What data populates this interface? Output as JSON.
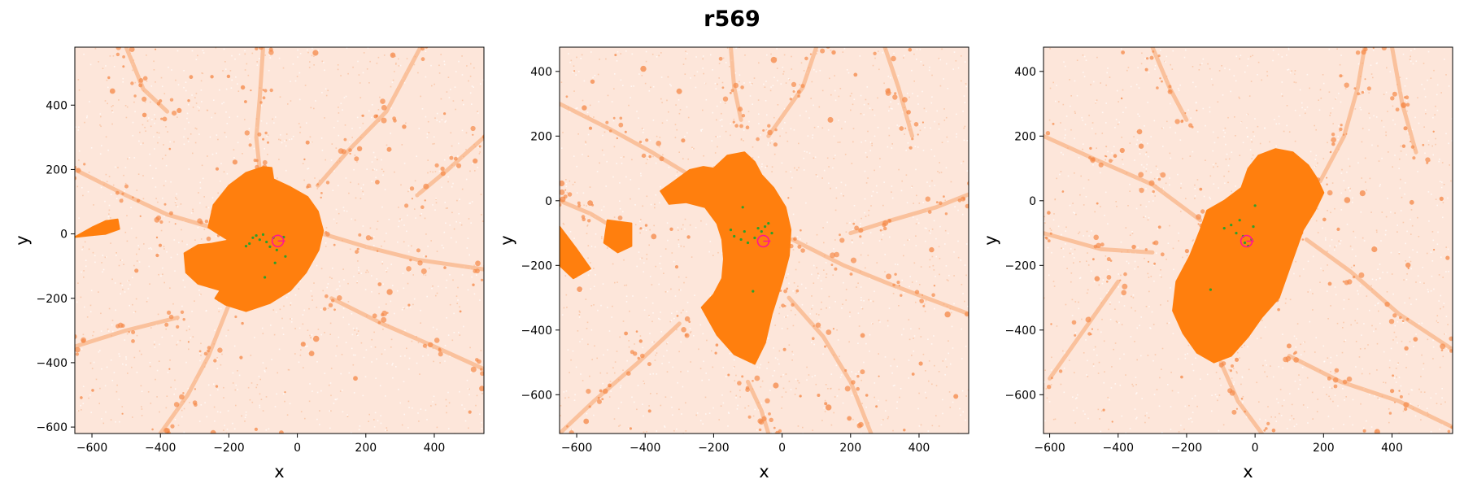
{
  "figure": {
    "title": "r569"
  },
  "colors": {
    "particles": "#ff7f0e",
    "halo": "#ff7f0e",
    "subhalo": "#2ca02c",
    "center": "#ff1493"
  },
  "chart_data": [
    {
      "type": "scatter",
      "xlabel": "x",
      "ylabel": "y",
      "xlim": [
        -650,
        545
      ],
      "ylim": [
        -620,
        580
      ],
      "xticks": [
        -600,
        -400,
        -200,
        0,
        200,
        400
      ],
      "yticks": [
        -600,
        -400,
        -200,
        0,
        200,
        400
      ],
      "center": [
        -57,
        -22
      ],
      "halo": [
        [
          -70,
          170
        ],
        [
          -20,
          145
        ],
        [
          30,
          115
        ],
        [
          60,
          70
        ],
        [
          75,
          10
        ],
        [
          62,
          -50
        ],
        [
          25,
          -120
        ],
        [
          -20,
          -175
        ],
        [
          -80,
          -215
        ],
        [
          -150,
          -240
        ],
        [
          -210,
          -220
        ],
        [
          -240,
          -200
        ],
        [
          -225,
          -175
        ],
        [
          -290,
          -155
        ],
        [
          -325,
          -120
        ],
        [
          -330,
          -60
        ],
        [
          -290,
          -35
        ],
        [
          -250,
          -30
        ],
        [
          -200,
          -20
        ],
        [
          -260,
          20
        ],
        [
          -245,
          90
        ],
        [
          -200,
          150
        ],
        [
          -150,
          190
        ],
        [
          -100,
          208
        ],
        [
          -75,
          205
        ]
      ],
      "halo_tail": [
        [
          -650,
          -10
        ],
        [
          -600,
          20
        ],
        [
          -560,
          40
        ],
        [
          -525,
          45
        ],
        [
          -520,
          15
        ],
        [
          -560,
          0
        ],
        [
          -610,
          -5
        ]
      ],
      "subhalos": [
        [
          -150,
          -38
        ],
        [
          -140,
          -30
        ],
        [
          -130,
          -12
        ],
        [
          -120,
          -5
        ],
        [
          -110,
          -18
        ],
        [
          -100,
          -2
        ],
        [
          -90,
          -25
        ],
        [
          -80,
          -40
        ],
        [
          -70,
          -12
        ],
        [
          -60,
          -50
        ],
        [
          -40,
          -10
        ],
        [
          -35,
          -70
        ],
        [
          -65,
          -90
        ],
        [
          -95,
          -135
        ]
      ],
      "filaments": [
        [
          [
            -650,
            200
          ],
          [
            -500,
            120
          ],
          [
            -380,
            60
          ],
          [
            -250,
            20
          ]
        ],
        [
          [
            -100,
            580
          ],
          [
            -110,
            420
          ],
          [
            -120,
            300
          ],
          [
            -110,
            200
          ]
        ],
        [
          [
            75,
            0
          ],
          [
            200,
            -40
          ],
          [
            350,
            -80
          ],
          [
            545,
            -110
          ]
        ],
        [
          [
            60,
            150
          ],
          [
            150,
            260
          ],
          [
            260,
            380
          ],
          [
            360,
            580
          ]
        ],
        [
          [
            -200,
            -220
          ],
          [
            -260,
            -380
          ],
          [
            -320,
            -500
          ],
          [
            -400,
            -620
          ]
        ],
        [
          [
            -650,
            -350
          ],
          [
            -500,
            -300
          ],
          [
            -350,
            -260
          ]
        ],
        [
          [
            100,
            -200
          ],
          [
            250,
            -280
          ],
          [
            400,
            -350
          ],
          [
            545,
            -420
          ]
        ],
        [
          [
            545,
            300
          ],
          [
            440,
            200
          ],
          [
            350,
            120
          ]
        ],
        [
          [
            -500,
            580
          ],
          [
            -450,
            450
          ],
          [
            -380,
            380
          ]
        ]
      ]
    },
    {
      "type": "scatter",
      "xlabel": "x",
      "ylabel": "y",
      "xlim": [
        -650,
        545
      ],
      "ylim": [
        -720,
        475
      ],
      "xticks": [
        -600,
        -400,
        -200,
        0,
        200,
        400
      ],
      "yticks": [
        -600,
        -400,
        -200,
        0,
        200,
        400
      ],
      "center": [
        -55,
        -125
      ],
      "halo": [
        [
          -200,
          100
        ],
        [
          -160,
          140
        ],
        [
          -110,
          150
        ],
        [
          -80,
          120
        ],
        [
          -60,
          80
        ],
        [
          -25,
          40
        ],
        [
          10,
          -20
        ],
        [
          25,
          -90
        ],
        [
          20,
          -170
        ],
        [
          0,
          -250
        ],
        [
          -30,
          -350
        ],
        [
          -50,
          -440
        ],
        [
          -80,
          -505
        ],
        [
          -140,
          -475
        ],
        [
          -190,
          -415
        ],
        [
          -235,
          -330
        ],
        [
          -200,
          -290
        ],
        [
          -175,
          -240
        ],
        [
          -170,
          -180
        ],
        [
          -175,
          -120
        ],
        [
          -190,
          -70
        ],
        [
          -225,
          -20
        ],
        [
          -280,
          -5
        ],
        [
          -330,
          -10
        ],
        [
          -355,
          30
        ],
        [
          -315,
          60
        ],
        [
          -270,
          95
        ],
        [
          -230,
          105
        ]
      ],
      "halo_tail": [
        [
          -650,
          -80
        ],
        [
          -600,
          -150
        ],
        [
          -560,
          -210
        ],
        [
          -610,
          -240
        ],
        [
          -650,
          -200
        ]
      ],
      "halo_tail2": [
        [
          -510,
          -60
        ],
        [
          -440,
          -70
        ],
        [
          -440,
          -140
        ],
        [
          -480,
          -160
        ],
        [
          -520,
          -130
        ]
      ],
      "subhalos": [
        [
          -150,
          -90
        ],
        [
          -140,
          -110
        ],
        [
          -120,
          -120
        ],
        [
          -110,
          -95
        ],
        [
          -100,
          -130
        ],
        [
          -80,
          -115
        ],
        [
          -70,
          -85
        ],
        [
          -60,
          -95
        ],
        [
          -50,
          -80
        ],
        [
          -40,
          -70
        ],
        [
          -30,
          -100
        ],
        [
          -115,
          -20
        ],
        [
          -85,
          -280
        ]
      ],
      "filaments": [
        [
          [
            -650,
            300
          ],
          [
            -500,
            220
          ],
          [
            -380,
            150
          ],
          [
            -240,
            60
          ]
        ],
        [
          [
            -150,
            475
          ],
          [
            -140,
            350
          ],
          [
            -120,
            250
          ]
        ],
        [
          [
            30,
            -120
          ],
          [
            180,
            -200
          ],
          [
            320,
            -260
          ],
          [
            420,
            -300
          ],
          [
            545,
            -350
          ]
        ],
        [
          [
            20,
            -300
          ],
          [
            120,
            -420
          ],
          [
            200,
            -560
          ],
          [
            260,
            -720
          ]
        ],
        [
          [
            -300,
            -380
          ],
          [
            -420,
            -500
          ],
          [
            -550,
            -620
          ],
          [
            -650,
            -720
          ]
        ],
        [
          [
            -100,
            -560
          ],
          [
            -60,
            -650
          ],
          [
            -40,
            -720
          ]
        ],
        [
          [
            200,
            -100
          ],
          [
            320,
            -60
          ],
          [
            450,
            -20
          ],
          [
            545,
            20
          ]
        ],
        [
          [
            -650,
            0
          ],
          [
            -560,
            -40
          ],
          [
            -480,
            -90
          ]
        ],
        [
          [
            300,
            475
          ],
          [
            340,
            350
          ],
          [
            380,
            200
          ]
        ],
        [
          [
            100,
            475
          ],
          [
            60,
            350
          ],
          [
            -40,
            200
          ]
        ]
      ]
    },
    {
      "type": "scatter",
      "xlabel": "x",
      "ylabel": "y",
      "xlim": [
        -618,
        577
      ],
      "ylim": [
        -720,
        475
      ],
      "xticks": [
        -600,
        -400,
        -200,
        0,
        200,
        400
      ],
      "yticks": [
        -600,
        -400,
        -200,
        0,
        200,
        400
      ],
      "center": [
        -25,
        -125
      ],
      "halo": [
        [
          10,
          140
        ],
        [
          60,
          160
        ],
        [
          110,
          150
        ],
        [
          155,
          110
        ],
        [
          180,
          70
        ],
        [
          200,
          25
        ],
        [
          175,
          -30
        ],
        [
          140,
          -90
        ],
        [
          110,
          -180
        ],
        [
          70,
          -300
        ],
        [
          20,
          -360
        ],
        [
          -20,
          -420
        ],
        [
          -70,
          -480
        ],
        [
          -120,
          -500
        ],
        [
          -170,
          -470
        ],
        [
          -210,
          -410
        ],
        [
          -240,
          -340
        ],
        [
          -230,
          -250
        ],
        [
          -190,
          -170
        ],
        [
          -160,
          -90
        ],
        [
          -140,
          -30
        ],
        [
          -90,
          0
        ],
        [
          -40,
          40
        ],
        [
          -20,
          100
        ]
      ],
      "subhalos": [
        [
          -90,
          -85
        ],
        [
          -70,
          -75
        ],
        [
          -55,
          -100
        ],
        [
          -45,
          -60
        ],
        [
          -35,
          -110
        ],
        [
          -30,
          -130
        ],
        [
          -20,
          -140
        ],
        [
          -10,
          -120
        ],
        [
          -5,
          -80
        ],
        [
          0,
          -15
        ],
        [
          -130,
          -275
        ]
      ],
      "filaments": [
        [
          [
            -618,
            200
          ],
          [
            -450,
            120
          ],
          [
            -300,
            50
          ],
          [
            -160,
            -60
          ]
        ],
        [
          [
            -400,
            -250
          ],
          [
            -500,
            -400
          ],
          [
            -600,
            -550
          ]
        ],
        [
          [
            -100,
            -500
          ],
          [
            -50,
            -620
          ],
          [
            20,
            -720
          ]
        ],
        [
          [
            150,
            -120
          ],
          [
            280,
            -220
          ],
          [
            420,
            -350
          ],
          [
            577,
            -460
          ]
        ],
        [
          [
            100,
            -480
          ],
          [
            250,
            -560
          ],
          [
            420,
            -620
          ],
          [
            577,
            -700
          ]
        ],
        [
          [
            190,
            60
          ],
          [
            260,
            200
          ],
          [
            300,
            350
          ],
          [
            320,
            475
          ]
        ],
        [
          [
            -300,
            475
          ],
          [
            -250,
            350
          ],
          [
            -200,
            250
          ]
        ],
        [
          [
            -618,
            -100
          ],
          [
            -450,
            -150
          ],
          [
            -300,
            -160
          ]
        ],
        [
          [
            400,
            475
          ],
          [
            430,
            300
          ],
          [
            470,
            150
          ]
        ]
      ]
    }
  ]
}
